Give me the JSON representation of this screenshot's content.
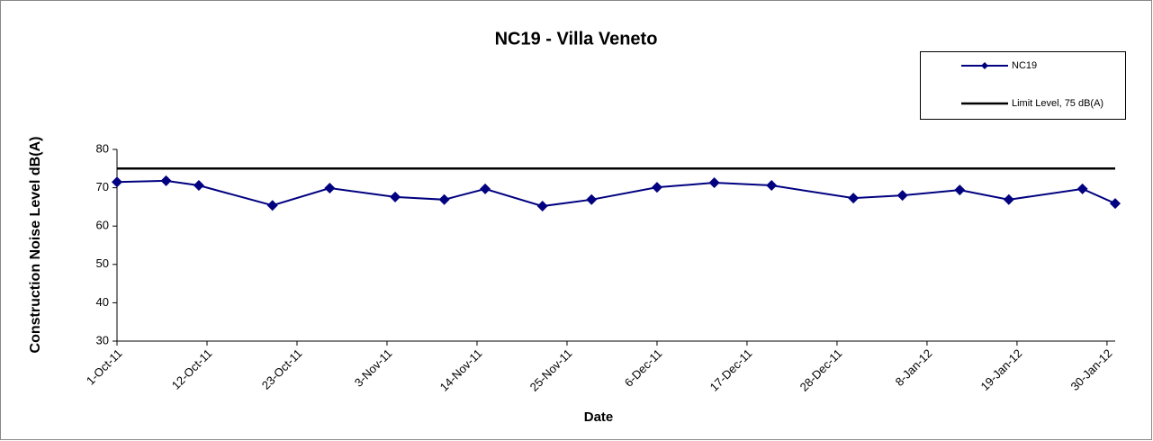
{
  "chart_data": {
    "type": "line",
    "title": "NC19 - Villa Veneto",
    "xlabel": "Date",
    "ylabel": "Construction Noise Level  dB(A)",
    "x": [
      "2011-10-01",
      "2011-10-07",
      "2011-10-11",
      "2011-10-20",
      "2011-10-27",
      "2011-11-04",
      "2011-11-10",
      "2011-11-15",
      "2011-11-22",
      "2011-11-28",
      "2011-12-06",
      "2011-12-13",
      "2011-12-20",
      "2011-12-30",
      "2012-01-05",
      "2012-01-12",
      "2012-01-18",
      "2012-01-27",
      "2012-01-31"
    ],
    "series": [
      {
        "name": "NC19",
        "color": "#000080",
        "values": [
          71.5,
          71.8,
          70.6,
          65.4,
          69.9,
          67.6,
          66.9,
          69.7,
          65.2,
          66.9,
          70.1,
          71.3,
          70.6,
          67.3,
          68.0,
          69.4,
          66.9,
          69.7,
          65.9
        ]
      }
    ],
    "limit": {
      "name": "Limit Level, 75 dB(A)",
      "color": "#000000",
      "value": 75
    },
    "xlim": [
      "2011-10-01",
      "2012-01-31"
    ],
    "xticks": [
      {
        "value": "2011-10-01",
        "label": "1-Oct-11"
      },
      {
        "value": "2011-10-12",
        "label": "12-Oct-11"
      },
      {
        "value": "2011-10-23",
        "label": "23-Oct-11"
      },
      {
        "value": "2011-11-03",
        "label": "3-Nov-11"
      },
      {
        "value": "2011-11-14",
        "label": "14-Nov-11"
      },
      {
        "value": "2011-11-25",
        "label": "25-Nov-11"
      },
      {
        "value": "2011-12-06",
        "label": "6-Dec-11"
      },
      {
        "value": "2011-12-17",
        "label": "17-Dec-11"
      },
      {
        "value": "2011-12-28",
        "label": "28-Dec-11"
      },
      {
        "value": "2012-01-08",
        "label": "8-Jan-12"
      },
      {
        "value": "2012-01-19",
        "label": "19-Jan-12"
      },
      {
        "value": "2012-01-30",
        "label": "30-Jan-12"
      }
    ],
    "ylim": [
      30,
      80
    ],
    "yticks": [
      30,
      40,
      50,
      60,
      70,
      80
    ],
    "grid": false,
    "legend": "upper right"
  }
}
